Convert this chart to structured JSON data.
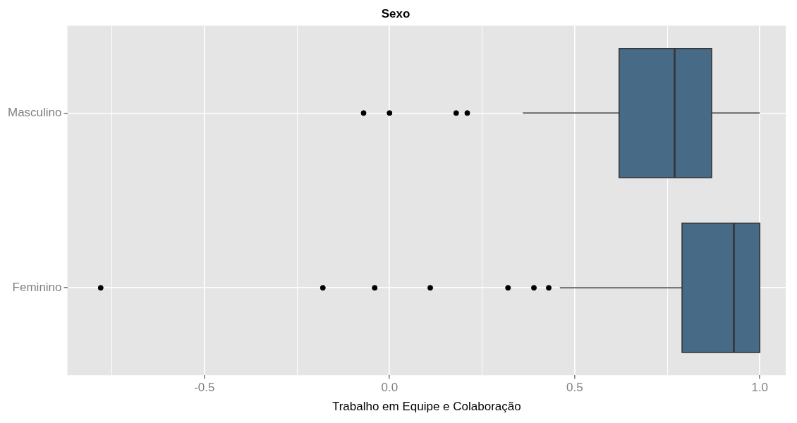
{
  "chart_data": {
    "type": "box",
    "title": "Sexo",
    "xlabel": "Trabalho em Equipe e Colaboração",
    "orientation": "horizontal",
    "categories": [
      "Masculino",
      "Feminino"
    ],
    "color": "#476b87",
    "grid": true,
    "xlim": [
      -0.87,
      1.07
    ],
    "xticks": [
      {
        "value": -0.75,
        "label": null
      },
      {
        "value": -0.5,
        "label": "-0.5"
      },
      {
        "value": -0.25,
        "label": null
      },
      {
        "value": 0,
        "label": "0.0"
      },
      {
        "value": 0.25,
        "label": null
      },
      {
        "value": 0.5,
        "label": "0.5"
      },
      {
        "value": 0.75,
        "label": null
      },
      {
        "value": 1,
        "label": "1.0"
      }
    ],
    "boxes": [
      {
        "low": 0.36,
        "q1": 0.62,
        "median": 0.77,
        "q3": 0.87,
        "high": 1.0,
        "outliers": [
          -0.07,
          0.0,
          0.18,
          0.21
        ]
      },
      {
        "low": 0.46,
        "q1": 0.79,
        "median": 0.93,
        "q3": 1.0,
        "high": 1.0,
        "outliers": [
          -0.78,
          -0.18,
          -0.04,
          0.11,
          0.32,
          0.39,
          0.43
        ]
      }
    ]
  }
}
